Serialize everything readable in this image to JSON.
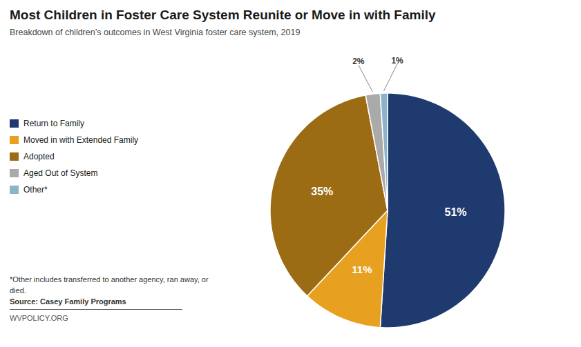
{
  "chart_data": {
    "type": "pie",
    "title": "Most Children in Foster Care System Reunite or Move in with Family",
    "subtitle": "Breakdown of children’s outcomes in West Virginia foster care system, 2019",
    "categories": [
      "Return to Family",
      "Moved in with Extended Family",
      "Adopted",
      "Aged Out of System",
      "Other*"
    ],
    "values": [
      51,
      11,
      35,
      2,
      1
    ],
    "value_labels": [
      "51%",
      "11%",
      "35%",
      "2%",
      "1%"
    ],
    "colors": [
      "#1e3a6e",
      "#e8a020",
      "#9b6c14",
      "#aaaaaa",
      "#8ab4c8"
    ],
    "data_labels": true,
    "legend": "left",
    "annotations": [
      "*Other includes transferred to another agency, ran away, or died.",
      "Source: Casey Family Programs",
      "WVPOLICY.ORG"
    ]
  }
}
